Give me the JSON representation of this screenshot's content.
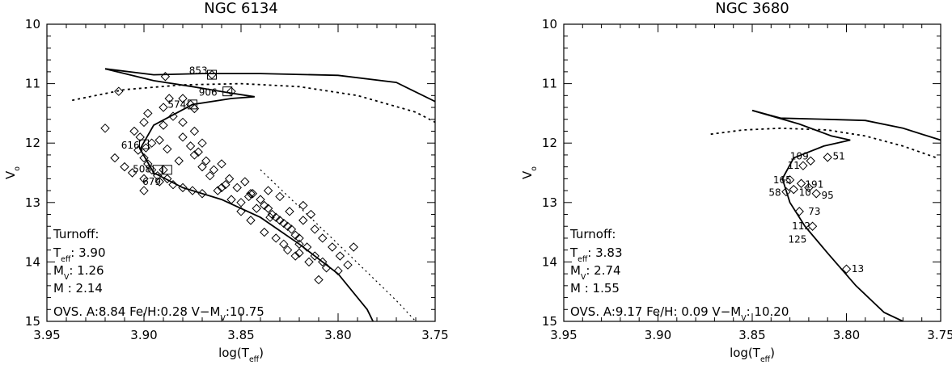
{
  "chart_data": [
    {
      "type": "scatter",
      "title": "NGC 6134",
      "xlabel": "log(T",
      "xlabel_sub": "eff",
      "xlabel_close": ")",
      "ylabel": "V",
      "ylabel_sub": "o",
      "xlim": [
        3.95,
        3.75
      ],
      "ylim": [
        15,
        10
      ],
      "xticks": [
        "3.95",
        "3.90",
        "3.85",
        "3.80",
        "3.75"
      ],
      "xtick_values": [
        3.95,
        3.9,
        3.85,
        3.8,
        3.75
      ],
      "yticks": [
        "10",
        "11",
        "12",
        "13",
        "14",
        "15"
      ],
      "ytick_values": [
        10,
        11,
        12,
        13,
        14,
        15
      ],
      "turnoff_title": "Turnoff:",
      "turnoff_rows": [
        {
          "sym": "T",
          "sub": "eff",
          "val": ": 3.90"
        },
        {
          "sym": "M",
          "sub": "V",
          "val": ": 1.26"
        },
        {
          "sym": "M",
          "sub": "",
          "val": " : 2.14"
        }
      ],
      "footer": "OVS. A:8.84 Fe/H:0.28 V−M",
      "footer_sub": "V",
      "footer_tail": ":10.75",
      "isochrone_solid": [
        [
          3.92,
          10.75
        ],
        [
          3.895,
          10.85
        ],
        [
          3.87,
          10.83
        ],
        [
          3.84,
          10.83
        ],
        [
          3.8,
          10.86
        ],
        [
          3.77,
          10.98
        ],
        [
          3.75,
          11.3
        ]
      ],
      "isochrone_hook": [
        [
          3.92,
          10.75
        ],
        [
          3.895,
          10.95
        ],
        [
          3.875,
          11.05
        ],
        [
          3.857,
          11.15
        ],
        [
          3.843,
          11.22
        ],
        [
          3.855,
          11.25
        ],
        [
          3.875,
          11.35
        ],
        [
          3.895,
          11.7
        ],
        [
          3.902,
          12.1
        ],
        [
          3.895,
          12.5
        ],
        [
          3.88,
          12.75
        ],
        [
          3.86,
          12.95
        ],
        [
          3.84,
          13.25
        ],
        [
          3.82,
          13.7
        ],
        [
          3.8,
          14.2
        ],
        [
          3.785,
          14.8
        ],
        [
          3.782,
          15.0
        ]
      ],
      "isochrone_dashed": [
        [
          3.937,
          11.28
        ],
        [
          3.91,
          11.1
        ],
        [
          3.88,
          11.02
        ],
        [
          3.85,
          11.0
        ],
        [
          3.82,
          11.05
        ],
        [
          3.79,
          11.2
        ],
        [
          3.76,
          11.48
        ],
        [
          3.75,
          11.65
        ]
      ],
      "binary_sequence": [
        [
          3.84,
          12.45
        ],
        [
          3.8,
          13.7
        ],
        [
          3.77,
          14.65
        ],
        [
          3.76,
          15.0
        ]
      ],
      "points": [
        [
          3.913,
          11.13
        ],
        [
          3.889,
          10.88
        ],
        [
          3.865,
          10.85
        ],
        [
          3.855,
          11.13
        ],
        [
          3.874,
          11.42
        ],
        [
          3.876,
          11.35
        ],
        [
          3.88,
          11.25
        ],
        [
          3.887,
          11.25
        ],
        [
          3.89,
          11.4
        ],
        [
          3.885,
          11.55
        ],
        [
          3.88,
          11.65
        ],
        [
          3.89,
          11.7
        ],
        [
          3.898,
          11.5
        ],
        [
          3.9,
          11.65
        ],
        [
          3.905,
          11.8
        ],
        [
          3.902,
          11.9
        ],
        [
          3.896,
          12.0
        ],
        [
          3.899,
          12.08
        ],
        [
          3.903,
          12.12
        ],
        [
          3.9,
          12.25
        ],
        [
          3.898,
          12.35
        ],
        [
          3.896,
          12.45
        ],
        [
          3.893,
          12.55
        ],
        [
          3.89,
          12.45
        ],
        [
          3.892,
          12.65
        ],
        [
          3.888,
          12.6
        ],
        [
          3.885,
          12.7
        ],
        [
          3.88,
          12.75
        ],
        [
          3.875,
          12.8
        ],
        [
          3.87,
          12.85
        ],
        [
          3.862,
          12.8
        ],
        [
          3.858,
          12.7
        ],
        [
          3.855,
          12.95
        ],
        [
          3.85,
          13.0
        ],
        [
          3.846,
          12.9
        ],
        [
          3.842,
          13.1
        ],
        [
          3.838,
          13.05
        ],
        [
          3.834,
          13.2
        ],
        [
          3.83,
          13.3
        ],
        [
          3.826,
          13.4
        ],
        [
          3.822,
          13.55
        ],
        [
          3.82,
          13.7
        ],
        [
          3.816,
          13.75
        ],
        [
          3.812,
          13.9
        ],
        [
          3.808,
          14.0
        ],
        [
          3.9,
          12.8
        ],
        [
          3.882,
          12.3
        ],
        [
          3.874,
          12.2
        ],
        [
          3.87,
          12.4
        ],
        [
          3.866,
          12.55
        ],
        [
          3.86,
          12.35
        ],
        [
          3.856,
          12.6
        ],
        [
          3.852,
          12.75
        ],
        [
          3.848,
          12.65
        ],
        [
          3.844,
          12.85
        ],
        [
          3.84,
          12.95
        ],
        [
          3.836,
          13.1
        ],
        [
          3.832,
          13.25
        ],
        [
          3.828,
          13.35
        ],
        [
          3.824,
          13.45
        ],
        [
          3.82,
          13.6
        ],
        [
          3.83,
          12.9
        ],
        [
          3.825,
          13.15
        ],
        [
          3.818,
          13.3
        ],
        [
          3.812,
          13.45
        ],
        [
          3.808,
          13.6
        ],
        [
          3.803,
          13.75
        ],
        [
          3.799,
          13.9
        ],
        [
          3.795,
          14.05
        ],
        [
          3.792,
          13.75
        ],
        [
          3.806,
          14.1
        ],
        [
          3.8,
          14.15
        ],
        [
          3.81,
          14.3
        ],
        [
          3.82,
          13.85
        ],
        [
          3.815,
          14.0
        ],
        [
          3.88,
          11.9
        ],
        [
          3.876,
          12.05
        ],
        [
          3.872,
          12.15
        ],
        [
          3.868,
          12.3
        ],
        [
          3.864,
          12.45
        ],
        [
          3.92,
          11.75
        ],
        [
          3.915,
          12.25
        ],
        [
          3.91,
          12.4
        ],
        [
          3.906,
          12.5
        ],
        [
          3.9,
          12.6
        ],
        [
          3.845,
          13.3
        ],
        [
          3.85,
          13.15
        ],
        [
          3.838,
          13.5
        ],
        [
          3.835,
          13.25
        ],
        [
          3.832,
          13.6
        ],
        [
          3.828,
          13.7
        ],
        [
          3.826,
          13.8
        ],
        [
          3.822,
          13.9
        ],
        [
          3.86,
          12.75
        ],
        [
          3.845,
          12.85
        ],
        [
          3.836,
          12.8
        ],
        [
          3.818,
          13.05
        ],
        [
          3.814,
          13.2
        ],
        [
          3.87,
          12.0
        ],
        [
          3.874,
          11.8
        ],
        [
          3.892,
          11.95
        ],
        [
          3.888,
          12.1
        ]
      ],
      "boxed_points": [
        [
          3.865,
          10.85
        ],
        [
          3.857,
          11.13
        ],
        [
          3.875,
          11.35
        ],
        [
          3.9,
          12.02
        ],
        [
          3.888,
          12.45
        ],
        [
          3.893,
          12.45
        ]
      ],
      "labels": [
        {
          "text": "853",
          "x": 3.872,
          "y": 10.78
        },
        {
          "text": "906",
          "x": 3.867,
          "y": 11.15
        },
        {
          "text": "574",
          "x": 3.883,
          "y": 11.35
        },
        {
          "text": "616",
          "x": 3.907,
          "y": 12.04
        },
        {
          "text": "508",
          "x": 3.901,
          "y": 12.44
        },
        {
          "text": "679",
          "x": 3.896,
          "y": 12.65
        }
      ]
    },
    {
      "type": "scatter",
      "title": "NGC 3680",
      "xlabel": "log(T",
      "xlabel_sub": "eff",
      "xlabel_close": ")",
      "ylabel": "V",
      "ylabel_sub": "o",
      "xlim": [
        3.95,
        3.75
      ],
      "ylim": [
        15,
        10
      ],
      "xticks": [
        "3.95",
        "3.90",
        "3.85",
        "3.80",
        "3.75"
      ],
      "xtick_values": [
        3.95,
        3.9,
        3.85,
        3.8,
        3.75
      ],
      "yticks": [
        "10",
        "11",
        "12",
        "13",
        "14",
        "15"
      ],
      "ytick_values": [
        10,
        11,
        12,
        13,
        14,
        15
      ],
      "turnoff_title": "Turnoff:",
      "turnoff_rows": [
        {
          "sym": "T",
          "sub": "eff",
          "val": ": 3.83"
        },
        {
          "sym": "M",
          "sub": "V",
          "val": ": 2.74"
        },
        {
          "sym": "M",
          "sub": "",
          "val": " : 1.55"
        }
      ],
      "footer": "OVS. A:9.17 Fe/H: 0.09 V−M",
      "footer_sub": "V",
      "footer_tail": ": 10.20",
      "isochrone_solid": [
        [
          3.85,
          11.45
        ],
        [
          3.835,
          11.58
        ],
        [
          3.81,
          11.6
        ],
        [
          3.79,
          11.62
        ],
        [
          3.77,
          11.75
        ],
        [
          3.75,
          11.95
        ]
      ],
      "isochrone_hook": [
        [
          3.85,
          11.45
        ],
        [
          3.825,
          11.68
        ],
        [
          3.808,
          11.88
        ],
        [
          3.798,
          11.95
        ],
        [
          3.812,
          12.05
        ],
        [
          3.828,
          12.25
        ],
        [
          3.834,
          12.6
        ],
        [
          3.83,
          13.0
        ],
        [
          3.822,
          13.4
        ],
        [
          3.81,
          13.85
        ],
        [
          3.795,
          14.4
        ],
        [
          3.78,
          14.85
        ],
        [
          3.77,
          15.0
        ]
      ],
      "isochrone_dashed": [
        [
          3.872,
          11.85
        ],
        [
          3.855,
          11.78
        ],
        [
          3.835,
          11.75
        ],
        [
          3.81,
          11.78
        ],
        [
          3.79,
          11.88
        ],
        [
          3.77,
          12.05
        ],
        [
          3.752,
          12.25
        ]
      ],
      "binary_sequence": [],
      "points": [
        [
          3.819,
          12.3
        ],
        [
          3.81,
          12.24
        ],
        [
          3.823,
          12.38
        ],
        [
          3.83,
          12.62
        ],
        [
          3.824,
          12.68
        ],
        [
          3.828,
          12.78
        ],
        [
          3.832,
          12.82
        ],
        [
          3.816,
          12.85
        ],
        [
          3.825,
          13.15
        ],
        [
          3.818,
          13.4
        ],
        [
          3.8,
          14.12
        ],
        [
          3.82,
          12.75
        ]
      ],
      "boxed_points": [],
      "labels": [
        {
          "text": "109",
          "x": 3.825,
          "y": 12.22
        },
        {
          "text": "51",
          "x": 3.804,
          "y": 12.22
        },
        {
          "text": "11",
          "x": 3.828,
          "y": 12.38
        },
        {
          "text": "165",
          "x": 3.834,
          "y": 12.62
        },
        {
          "text": "191",
          "x": 3.817,
          "y": 12.7
        },
        {
          "text": "58",
          "x": 3.838,
          "y": 12.83
        },
        {
          "text": "10",
          "x": 3.822,
          "y": 12.83
        },
        {
          "text": "95",
          "x": 3.81,
          "y": 12.88
        },
        {
          "text": "73",
          "x": 3.817,
          "y": 13.15
        },
        {
          "text": "112",
          "x": 3.824,
          "y": 13.4
        },
        {
          "text": "125",
          "x": 3.826,
          "y": 13.62
        },
        {
          "text": "13",
          "x": 3.794,
          "y": 14.12
        }
      ]
    }
  ]
}
